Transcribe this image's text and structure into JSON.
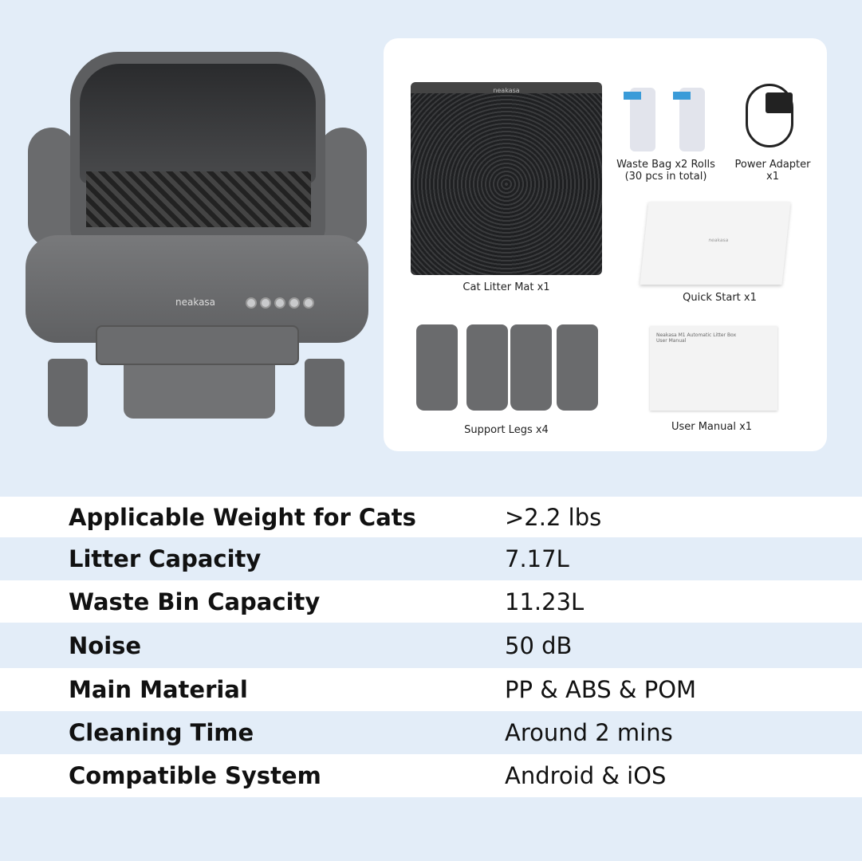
{
  "product": {
    "brand_logo": "neakasa"
  },
  "package_contents": [
    {
      "label": "Cat Litter Mat x1"
    },
    {
      "label": "Waste Bag x2 Rolls",
      "sub": "(30 pcs in total)"
    },
    {
      "label": "Power Adapter",
      "sub": "x1"
    },
    {
      "label": "Quick Start x1"
    },
    {
      "label": "Support Legs x4"
    },
    {
      "label": "User Manual x1"
    }
  ],
  "manual_cover": {
    "title": "Neakasa M1 Automatic Litter Box",
    "badge": "User Manual"
  },
  "specs": [
    {
      "key": "Applicable Weight for Cats",
      "value": ">2.2 lbs"
    },
    {
      "key": "Litter Capacity",
      "value": "7.17L"
    },
    {
      "key": "Waste Bin Capacity",
      "value": "11.23L"
    },
    {
      "key": "Noise",
      "value": "50 dB"
    },
    {
      "key": "Main Material",
      "value": "PP & ABS & POM"
    },
    {
      "key": "Cleaning Time",
      "value": "Around 2 mins"
    },
    {
      "key": "Compatible System",
      "value": "Android & iOS"
    }
  ],
  "colors": {
    "background": "#e3edf8",
    "row_alt": "#ffffff",
    "device": "#5f6062"
  }
}
